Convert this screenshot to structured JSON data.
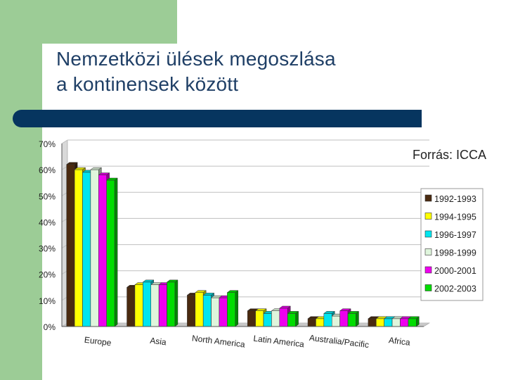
{
  "title": {
    "line1": "Nemzetközi ülések megoszlása",
    "line2": "a kontinensek között"
  },
  "source": "Forrás: ICCA",
  "colors": {
    "background_strip": "#9ccc96",
    "title_text": "#1f3f66",
    "header_rule": "#06355f"
  },
  "chart_data": {
    "type": "bar",
    "style": "3d-clustered",
    "categories": [
      "Europe",
      "Asia",
      "North America",
      "Latin America",
      "Australia/Pacific",
      "Africa"
    ],
    "y_ticks": [
      "0%",
      "10%",
      "20%",
      "30%",
      "40%",
      "50%",
      "60%",
      "70%"
    ],
    "ylim": [
      0,
      70
    ],
    "grid": true,
    "legend_position": "right",
    "series": [
      {
        "name": "1992-1993",
        "color": "#4a2a10",
        "values": [
          62,
          15,
          12,
          6,
          3,
          3
        ]
      },
      {
        "name": "1994-1995",
        "color": "#ffff00",
        "values": [
          60,
          16,
          13,
          6,
          3,
          3
        ]
      },
      {
        "name": "1996-1997",
        "color": "#00e5ee",
        "values": [
          59,
          17,
          12,
          5,
          5,
          3
        ]
      },
      {
        "name": "1998-1999",
        "color": "#dff5dc",
        "values": [
          60,
          16,
          11,
          6,
          4,
          3
        ]
      },
      {
        "name": "2000-2001",
        "color": "#ee00ee",
        "values": [
          58,
          16,
          11,
          7,
          6,
          3
        ]
      },
      {
        "name": "2002-2003",
        "color": "#00dd00",
        "values": [
          56,
          17,
          13,
          5,
          5,
          3
        ]
      }
    ]
  }
}
